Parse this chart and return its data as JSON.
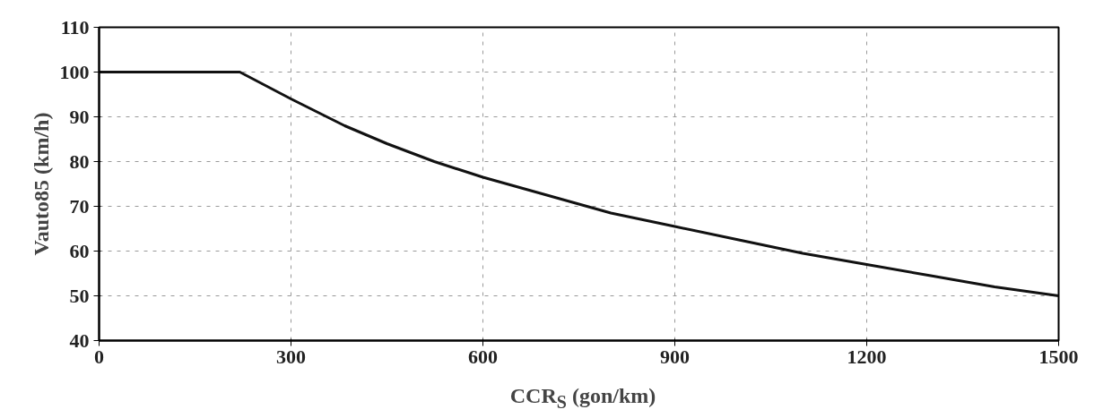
{
  "chart_data": {
    "type": "line",
    "xlabel": "CCR$_{S}$ (gon/km)",
    "ylabel": "Vauto85 (km/h)",
    "x": [
      0,
      220,
      300,
      384,
      450,
      524,
      600,
      700,
      800,
      900,
      1000,
      1100,
      1200,
      1300,
      1400,
      1500
    ],
    "series": [
      {
        "color": "#111111",
        "values": [
          100,
          100,
          94,
          88,
          84,
          80,
          76.5,
          72.5,
          68.5,
          65.5,
          62.5,
          59.5,
          57,
          54.5,
          52,
          50
        ]
      }
    ],
    "xlim": [
      0,
      1500
    ],
    "ylim": [
      40,
      110
    ],
    "xticks": [
      0,
      300,
      600,
      900,
      1200,
      1500
    ],
    "yticks": [
      40,
      50,
      60,
      70,
      80,
      90,
      100,
      110
    ],
    "grid": true,
    "line_style": "solid",
    "marker": "none"
  }
}
